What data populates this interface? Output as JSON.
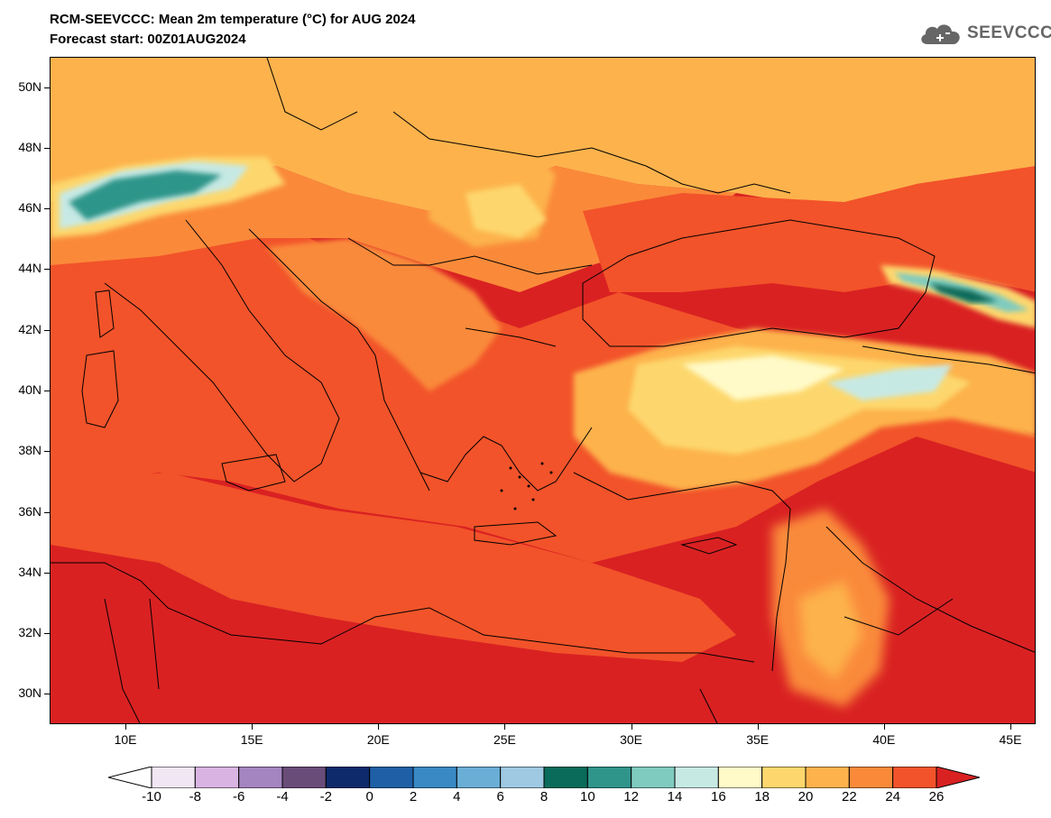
{
  "header": {
    "title": "RCM-SEEVCCC: Mean 2m temperature (°C) for AUG 2024",
    "subtitle": "Forecast start: 00Z01AUG2024",
    "logo_text": "SEEVCCC",
    "logo_icon": "cloud-icon"
  },
  "map": {
    "projection": "lat-lon",
    "lon_range": [
      7,
      46
    ],
    "lat_range": [
      29,
      51
    ],
    "lat_ticks": [
      "30N",
      "32N",
      "34N",
      "36N",
      "38N",
      "40N",
      "42N",
      "44N",
      "46N",
      "48N",
      "50N"
    ],
    "lon_ticks": [
      "10E",
      "15E",
      "20E",
      "25E",
      "30E",
      "35E",
      "40E",
      "45E"
    ],
    "dominant_field": "warm (20–26+ °C) across the Mediterranean, cooler over the Alps and Caucasus highlands"
  },
  "colorbar": {
    "levels": [
      "-10",
      "-8",
      "-6",
      "-4",
      "-2",
      "0",
      "2",
      "4",
      "6",
      "8",
      "10",
      "12",
      "14",
      "16",
      "18",
      "20",
      "22",
      "24",
      "26"
    ],
    "colors": [
      "#ffffff",
      "#f0e6f4",
      "#d9b4e2",
      "#a585c0",
      "#6a4c79",
      "#0e2a6b",
      "#1f5fa6",
      "#3a89c4",
      "#6aaed6",
      "#9fc9e2",
      "#0a6b5a",
      "#2f958a",
      "#7fcbbf",
      "#c7e9e4",
      "#fffac7",
      "#fdd76d",
      "#fdb24c",
      "#fa8a3a",
      "#f2532a",
      "#d92122"
    ]
  }
}
